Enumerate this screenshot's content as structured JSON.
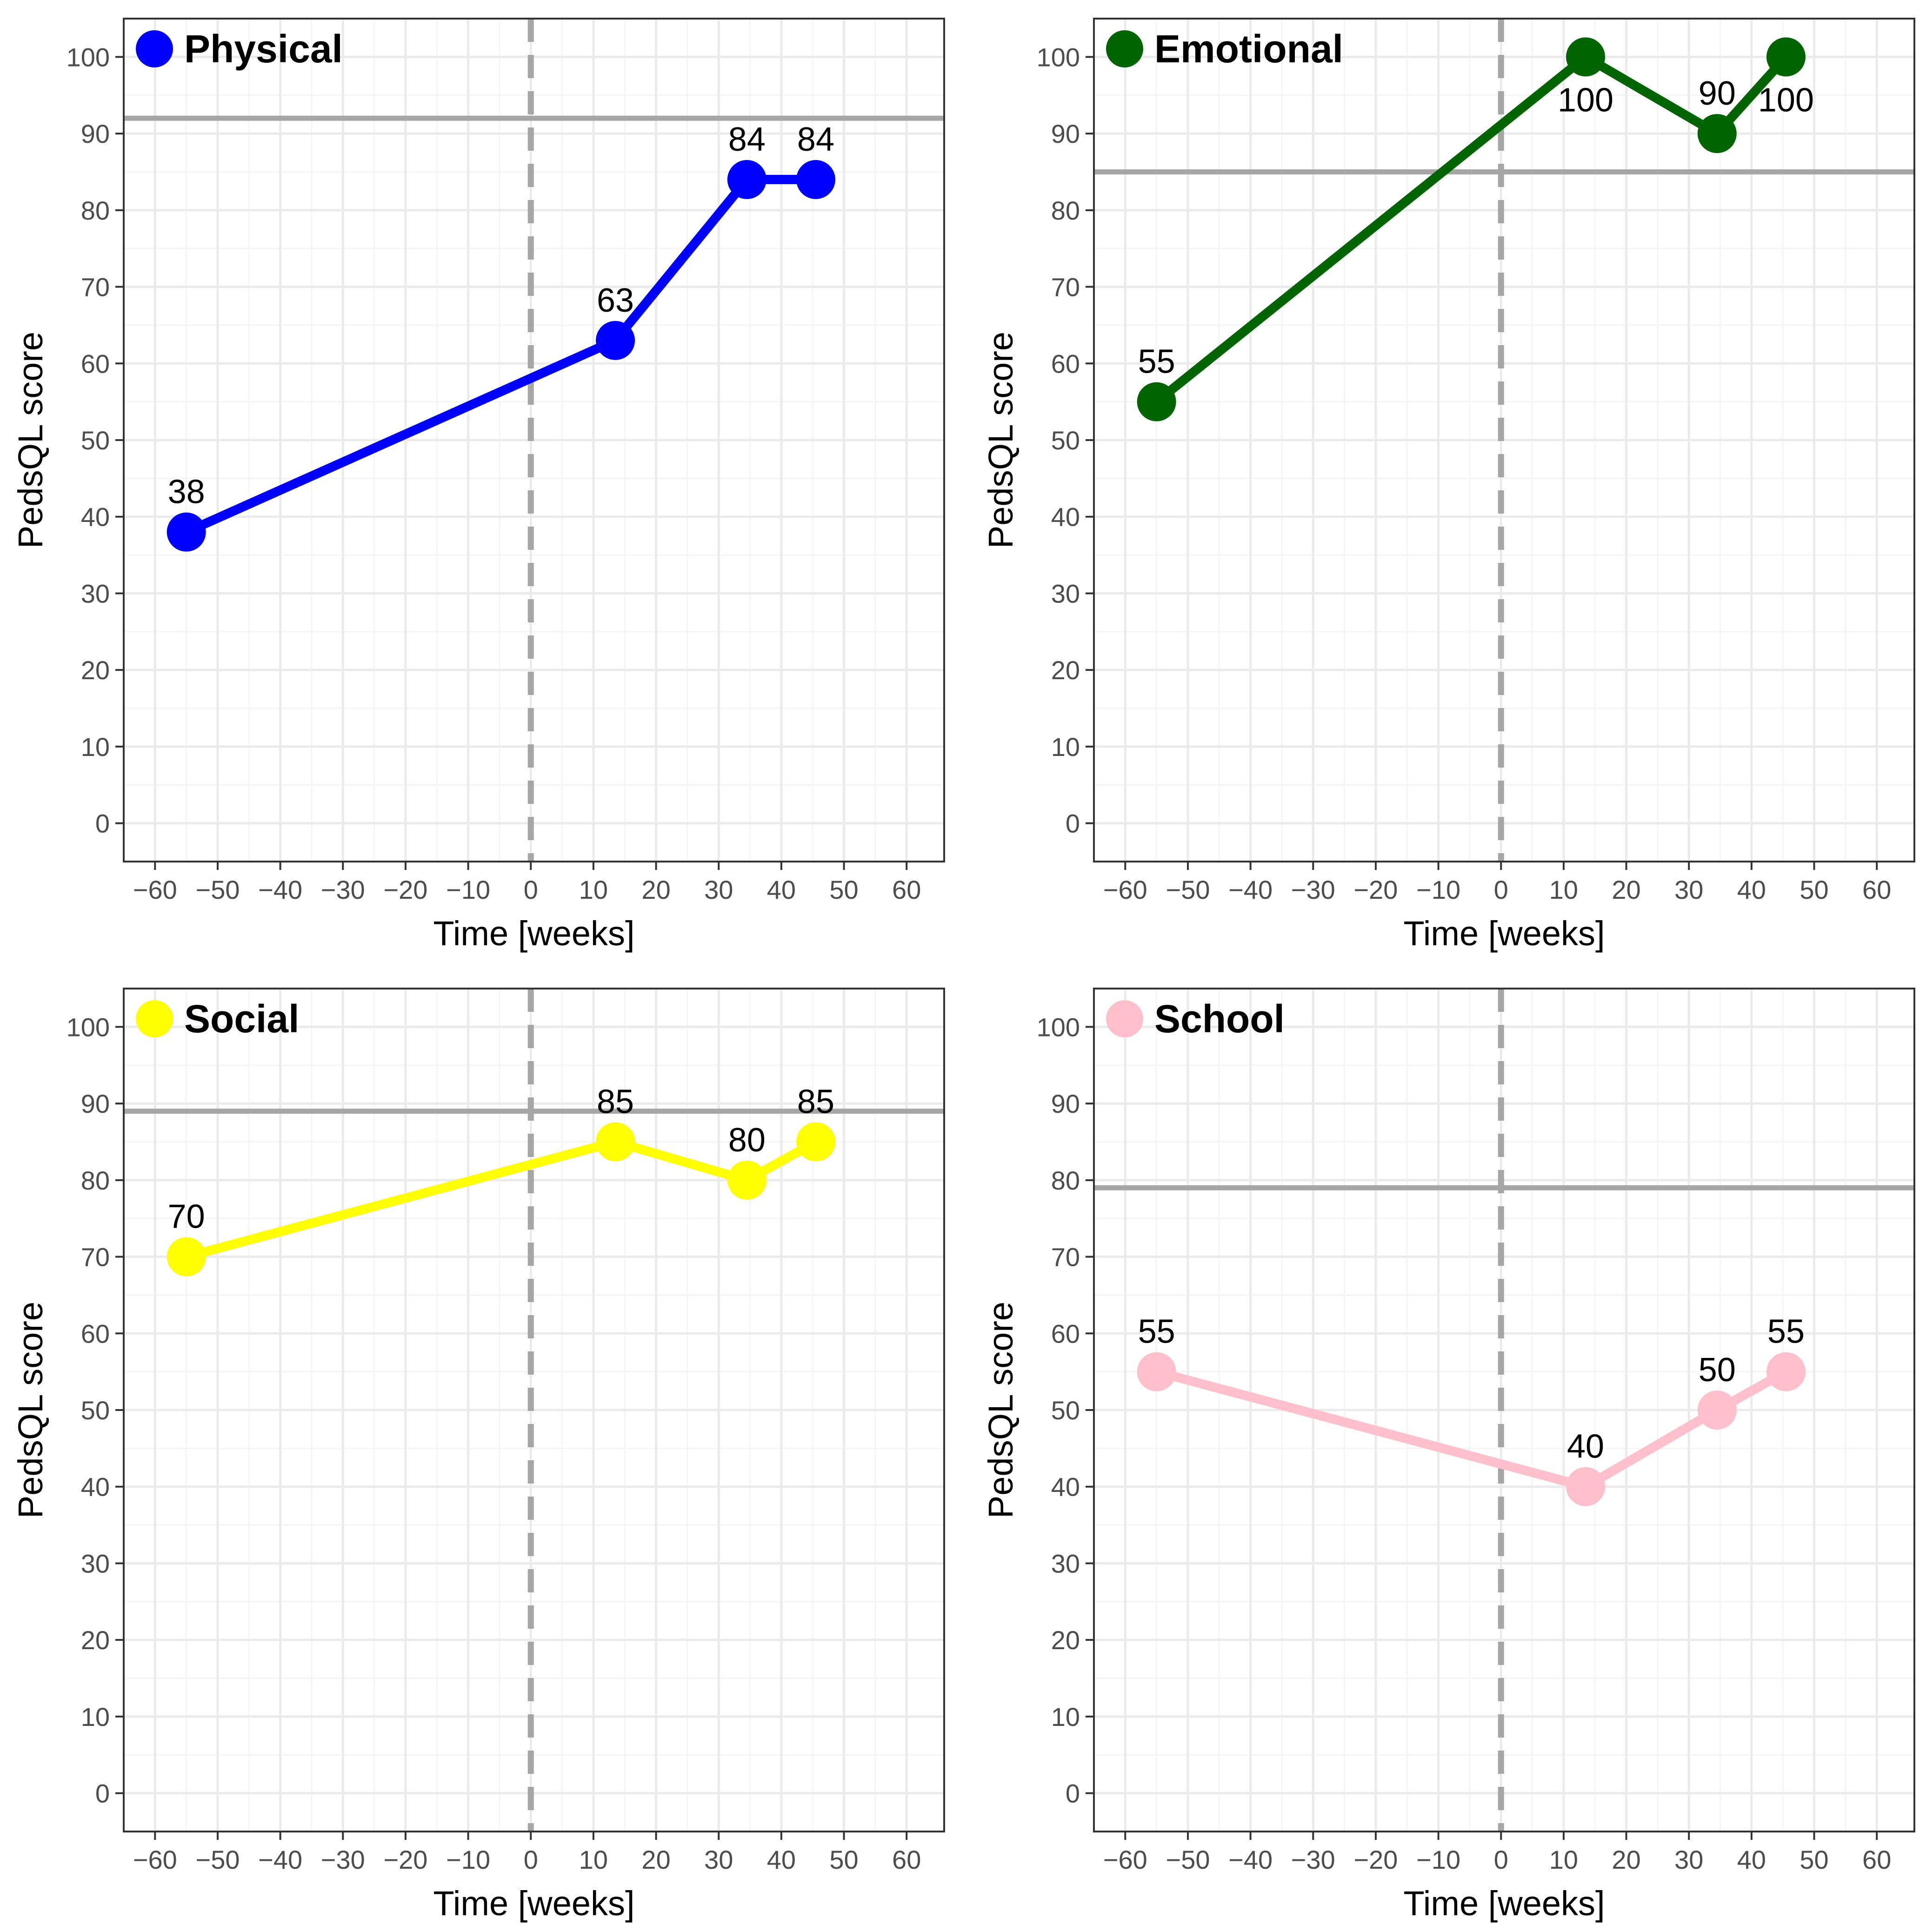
{
  "chart_data": [
    {
      "type": "line",
      "title": "Physical",
      "xlabel": "Time [weeks]",
      "ylabel": "PedsQL score",
      "xlim": [
        -65,
        66
      ],
      "ylim": [
        -5,
        105
      ],
      "xticks": [
        -60,
        -50,
        -40,
        -30,
        -20,
        -10,
        0,
        10,
        20,
        30,
        40,
        50,
        60
      ],
      "yticks": [
        0,
        10,
        20,
        30,
        40,
        50,
        60,
        70,
        80,
        90,
        100
      ],
      "color": "#0000ff",
      "reference_line": 92,
      "vertical_line": 0,
      "series": [
        {
          "x": [
            -55,
            13.5,
            34.5,
            45.5
          ],
          "values": [
            38,
            63,
            84,
            84
          ]
        }
      ],
      "labels": [
        {
          "text": "38",
          "pos": "above"
        },
        {
          "text": "63",
          "pos": "above"
        },
        {
          "text": "84",
          "pos": "above"
        },
        {
          "text": "84",
          "pos": "above"
        }
      ]
    },
    {
      "type": "line",
      "title": "Emotional",
      "xlabel": "Time [weeks]",
      "ylabel": "PedsQL score",
      "xlim": [
        -65,
        66
      ],
      "ylim": [
        -5,
        105
      ],
      "xticks": [
        -60,
        -50,
        -40,
        -30,
        -20,
        -10,
        0,
        10,
        20,
        30,
        40,
        50,
        60
      ],
      "yticks": [
        0,
        10,
        20,
        30,
        40,
        50,
        60,
        70,
        80,
        90,
        100
      ],
      "color": "#006400",
      "reference_line": 85,
      "vertical_line": 0,
      "series": [
        {
          "x": [
            -55,
            13.5,
            34.5,
            45.5
          ],
          "values": [
            55,
            100,
            90,
            100
          ]
        }
      ],
      "labels": [
        {
          "text": "55",
          "pos": "above"
        },
        {
          "text": "100",
          "pos": "below"
        },
        {
          "text": "90",
          "pos": "above"
        },
        {
          "text": "100",
          "pos": "below"
        }
      ]
    },
    {
      "type": "line",
      "title": "Social",
      "xlabel": "Time [weeks]",
      "ylabel": "PedsQL score",
      "xlim": [
        -65,
        66
      ],
      "ylim": [
        -5,
        105
      ],
      "xticks": [
        -60,
        -50,
        -40,
        -30,
        -20,
        -10,
        0,
        10,
        20,
        30,
        40,
        50,
        60
      ],
      "yticks": [
        0,
        10,
        20,
        30,
        40,
        50,
        60,
        70,
        80,
        90,
        100
      ],
      "color": "#ffff00",
      "reference_line": 89,
      "vertical_line": 0,
      "series": [
        {
          "x": [
            -55,
            13.5,
            34.5,
            45.5
          ],
          "values": [
            70,
            85,
            80,
            85
          ]
        }
      ],
      "labels": [
        {
          "text": "70",
          "pos": "above"
        },
        {
          "text": "85",
          "pos": "above"
        },
        {
          "text": "80",
          "pos": "above"
        },
        {
          "text": "85",
          "pos": "above"
        }
      ]
    },
    {
      "type": "line",
      "title": "School",
      "xlabel": "Time [weeks]",
      "ylabel": "PedsQL score",
      "xlim": [
        -65,
        66
      ],
      "ylim": [
        -5,
        105
      ],
      "xticks": [
        -60,
        -50,
        -40,
        -30,
        -20,
        -10,
        0,
        10,
        20,
        30,
        40,
        50,
        60
      ],
      "yticks": [
        0,
        10,
        20,
        30,
        40,
        50,
        60,
        70,
        80,
        90,
        100
      ],
      "color": "#ffc0cb",
      "reference_line": 79,
      "vertical_line": 0,
      "series": [
        {
          "x": [
            -55,
            13.5,
            34.5,
            45.5
          ],
          "values": [
            55,
            40,
            50,
            55
          ]
        }
      ],
      "labels": [
        {
          "text": "55",
          "pos": "above"
        },
        {
          "text": "40",
          "pos": "above"
        },
        {
          "text": "50",
          "pos": "above"
        },
        {
          "text": "55",
          "pos": "above"
        }
      ]
    }
  ],
  "style": {
    "grid_major": "#ebebeb",
    "grid_minor": "#f5f5f5",
    "reference_line_color": "#a6a6a6",
    "vertical_line_color": "#a6a6a6",
    "panel_border": "#333333"
  }
}
